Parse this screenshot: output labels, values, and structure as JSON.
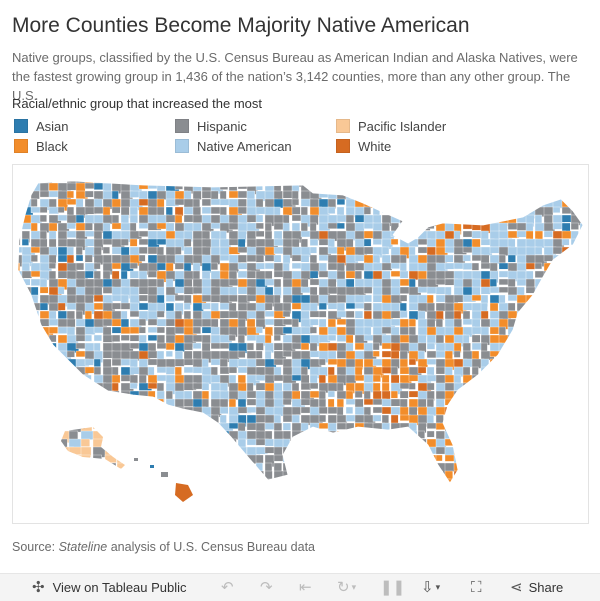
{
  "title": "More Counties Become Majority Native American",
  "subtitle": "Native groups, classified by the U.S. Census Bureau as American Indian and Alaska Natives, were the fastest growing group in 1,436 of the nation’s 3,142 counties, more than any other group. The U.S.",
  "legend": {
    "title": "Racial/ethnic group that increased the most",
    "items": [
      {
        "label": "Asian",
        "color": "#2e7db0"
      },
      {
        "label": "Hispanic",
        "color": "#8a8d91"
      },
      {
        "label": "Pacific Islander",
        "color": "#f9c896"
      },
      {
        "label": "Black",
        "color": "#f28d2b"
      },
      {
        "label": "Native American",
        "color": "#a9cde9"
      },
      {
        "label": "White",
        "color": "#d66b22"
      }
    ]
  },
  "source": {
    "prefix": "Source:",
    "italic": "Stateline",
    "rest": "analysis of U.S. Census Bureau data"
  },
  "toolbar": {
    "view_label": "View on Tableau Public",
    "share_label": "Share",
    "icons": [
      "tableau-logo-icon",
      "undo-icon",
      "redo-icon",
      "revert-icon",
      "refresh-icon",
      "pause-icon",
      "download-icon",
      "fullscreen-icon",
      "share-icon"
    ]
  }
}
